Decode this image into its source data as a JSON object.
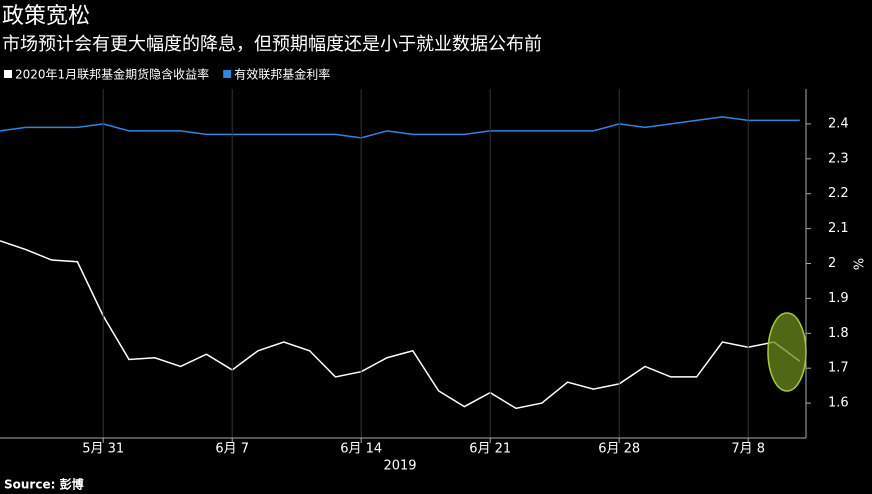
{
  "chart_data": {
    "type": "line",
    "title": "政策宽松",
    "subtitle": "市场预计会有更大幅度的降息，但预期幅度还是小于就业数据公布前",
    "xlabel": "2019",
    "ylabel": "%",
    "source": "Source: 彭博",
    "categories": [
      null,
      null,
      null,
      null,
      "5月 31",
      null,
      null,
      null,
      null,
      "6月 7",
      null,
      null,
      null,
      null,
      "6月 14",
      null,
      null,
      null,
      null,
      "6月 21",
      null,
      null,
      null,
      null,
      "6月 28",
      null,
      null,
      null,
      null,
      "7月 8",
      null,
      null
    ],
    "series": [
      {
        "name": "2020年1月联邦基金期货隐含收益率",
        "color": "#ffffff",
        "values": [
          2.065,
          2.04,
          2.01,
          2.005,
          1.85,
          1.725,
          1.73,
          1.705,
          1.74,
          1.695,
          1.75,
          1.775,
          1.75,
          1.675,
          1.69,
          1.73,
          1.75,
          1.635,
          1.59,
          1.63,
          1.585,
          1.6,
          1.66,
          1.64,
          1.655,
          1.705,
          1.675,
          1.675,
          1.775,
          1.76,
          1.775,
          1.72
        ]
      },
      {
        "name": "有效联邦基金利率",
        "color": "#2f86e0",
        "values": [
          2.38,
          2.39,
          2.39,
          2.39,
          2.4,
          2.38,
          2.38,
          2.38,
          2.37,
          2.37,
          2.37,
          2.37,
          2.37,
          2.37,
          2.36,
          2.38,
          2.37,
          2.37,
          2.37,
          2.38,
          2.38,
          2.38,
          2.38,
          2.38,
          2.4,
          2.39,
          2.4,
          2.41,
          2.42,
          2.41,
          2.41,
          2.41
        ]
      }
    ],
    "ylim": [
      1.5,
      2.5
    ],
    "yticks": [
      1.6,
      1.7,
      1.8,
      1.9,
      2.0,
      2.1,
      2.2,
      2.3,
      2.4
    ],
    "grid": "x"
  }
}
